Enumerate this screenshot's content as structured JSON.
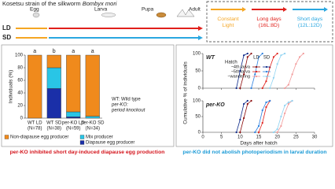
{
  "header": {
    "title": "Kosetsu strain of the silkworm",
    "species": "Bombyx mori",
    "stages": [
      "Egg",
      "Larva",
      "Pupa",
      "Adult"
    ],
    "rows": [
      "LD",
      "SD"
    ],
    "conditions": [
      {
        "lines": [
          "Constant",
          "Light"
        ],
        "color": "#f5a623"
      },
      {
        "lines": [
          "Long days",
          "(16L:8D)"
        ],
        "color": "#e0201b"
      },
      {
        "lines": [
          "Short days",
          "(12L:12D)"
        ],
        "color": "#2aa7e0"
      }
    ]
  },
  "notes": [
    "WT: Wild type",
    "per-KO:",
    "period knockout"
  ],
  "captions": [
    "per-KO inhibited short day-induced diapause egg production",
    "per-KO did not abolish photoperiodism in larval duration"
  ],
  "chart_data": [
    {
      "type": "stacked_bar",
      "y_label": "Individuals (%)",
      "categories": [
        "WT LD",
        "WT SD",
        "per-KO LD",
        "per-KO SD"
      ],
      "sample_sizes": [
        "(N=78)",
        "(N=38)",
        "(N=59)",
        "(N=34)"
      ],
      "letters": [
        "a",
        "b",
        "a",
        "a"
      ],
      "series": [
        {
          "name": "Diapause egg producer",
          "color": "#1a2fa8",
          "values": [
            0,
            47,
            2,
            0
          ]
        },
        {
          "name": "Mix producer",
          "color": "#29c5e6",
          "values": [
            0,
            33,
            8,
            3
          ]
        },
        {
          "name": "Non-diapause egg producer",
          "color": "#f08a1c",
          "values": [
            100,
            20,
            90,
            97
          ]
        }
      ],
      "ylim": [
        0,
        100
      ],
      "yticks": [
        0,
        20,
        40,
        60,
        80,
        100
      ]
    },
    {
      "type": "line",
      "title": "WT",
      "y_label": "Cumulative % of individuals",
      "legend": {
        "title": "Hatch",
        "columns": [
          "LD",
          "SD"
        ],
        "rows": [
          "~4th larva",
          "~5th larva",
          "~wandering"
        ]
      },
      "series": [
        {
          "color": "#8b0a0a",
          "x": [
            10,
            11,
            12,
            13
          ],
          "values": [
            0,
            40,
            90,
            100
          ]
        },
        {
          "color": "#e0201b",
          "x": [
            16,
            17,
            18,
            19,
            20
          ],
          "values": [
            0,
            20,
            60,
            90,
            100
          ]
        },
        {
          "color": "#f29a9a",
          "x": [
            22,
            23,
            24,
            25,
            26,
            27
          ],
          "values": [
            0,
            10,
            40,
            70,
            90,
            100
          ]
        },
        {
          "color": "#0d2a8a",
          "x": [
            9,
            10,
            11,
            12
          ],
          "values": [
            0,
            50,
            95,
            100
          ]
        },
        {
          "color": "#2a7fe0",
          "x": [
            13,
            14,
            15,
            16
          ],
          "values": [
            0,
            40,
            90,
            100
          ]
        },
        {
          "color": "#8fd3f2",
          "x": [
            18,
            19,
            20,
            21,
            22
          ],
          "values": [
            0,
            30,
            70,
            95,
            100
          ]
        }
      ],
      "xlim": [
        0,
        30
      ],
      "xticks": [
        0,
        5,
        10,
        15,
        20,
        25,
        30
      ],
      "ylim": [
        0,
        100
      ],
      "yticks": [
        0,
        50,
        100
      ]
    },
    {
      "type": "line",
      "title": "per-KO",
      "x_label": "Days after hatch",
      "series": [
        {
          "color": "#8b0a0a",
          "x": [
            10,
            11,
            12,
            13
          ],
          "values": [
            0,
            45,
            90,
            100
          ]
        },
        {
          "color": "#e0201b",
          "x": [
            15,
            16,
            17,
            18
          ],
          "values": [
            0,
            30,
            80,
            100
          ]
        },
        {
          "color": "#f29a9a",
          "x": [
            20,
            21,
            22,
            23,
            24
          ],
          "values": [
            0,
            20,
            60,
            90,
            100
          ]
        },
        {
          "color": "#0d2a8a",
          "x": [
            9,
            10,
            11,
            12
          ],
          "values": [
            0,
            40,
            90,
            100
          ]
        },
        {
          "color": "#2a7fe0",
          "x": [
            14,
            15,
            16,
            17,
            18
          ],
          "values": [
            0,
            20,
            70,
            95,
            100
          ]
        },
        {
          "color": "#8fd3f2",
          "x": [
            19,
            20,
            21,
            22,
            23,
            24
          ],
          "values": [
            0,
            10,
            50,
            85,
            95,
            100
          ]
        }
      ],
      "xlim": [
        0,
        30
      ],
      "xticks": [
        0,
        5,
        10,
        15,
        20,
        25,
        30
      ],
      "ylim": [
        0,
        100
      ],
      "yticks": [
        0,
        50,
        100
      ]
    }
  ]
}
